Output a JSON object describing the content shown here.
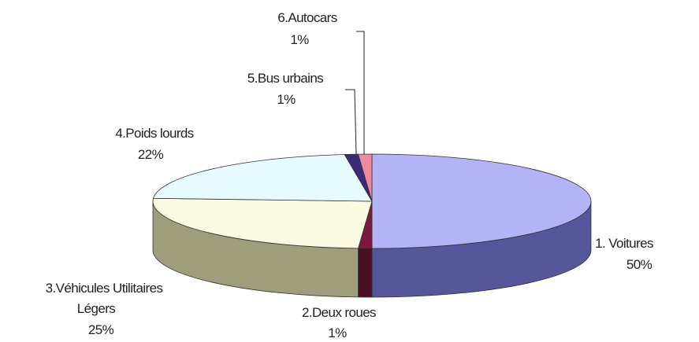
{
  "chart_data": {
    "type": "pie",
    "style": "3d-exploded-none",
    "title": "",
    "slices": [
      {
        "name": "1. Voitures",
        "value": 50,
        "label": "50%",
        "color": "#b3b3f5",
        "side_color": "#56569a"
      },
      {
        "name": "2.Deux roues",
        "value": 1,
        "label": "1%",
        "color": "#7a1a3c",
        "side_color": "#4a0f25"
      },
      {
        "name": "3.Véhicules Utilitaires Légers",
        "value": 25,
        "label": "25%",
        "color": "#fbfbe4",
        "side_color": "#9e9e7c"
      },
      {
        "name": "4.Poids lourds",
        "value": 22,
        "label": "22%",
        "color": "#e6fbfd",
        "side_color": "#8fa3a5"
      },
      {
        "name": "5.Bus urbains",
        "value": 1,
        "label": "1%",
        "color": "#3a2a7a",
        "side_color": "#231848"
      },
      {
        "name": "6.Autocars",
        "value": 1,
        "label": "1%",
        "color": "#ee8aa0",
        "side_color": "#a85566"
      }
    ],
    "legend": "none"
  }
}
